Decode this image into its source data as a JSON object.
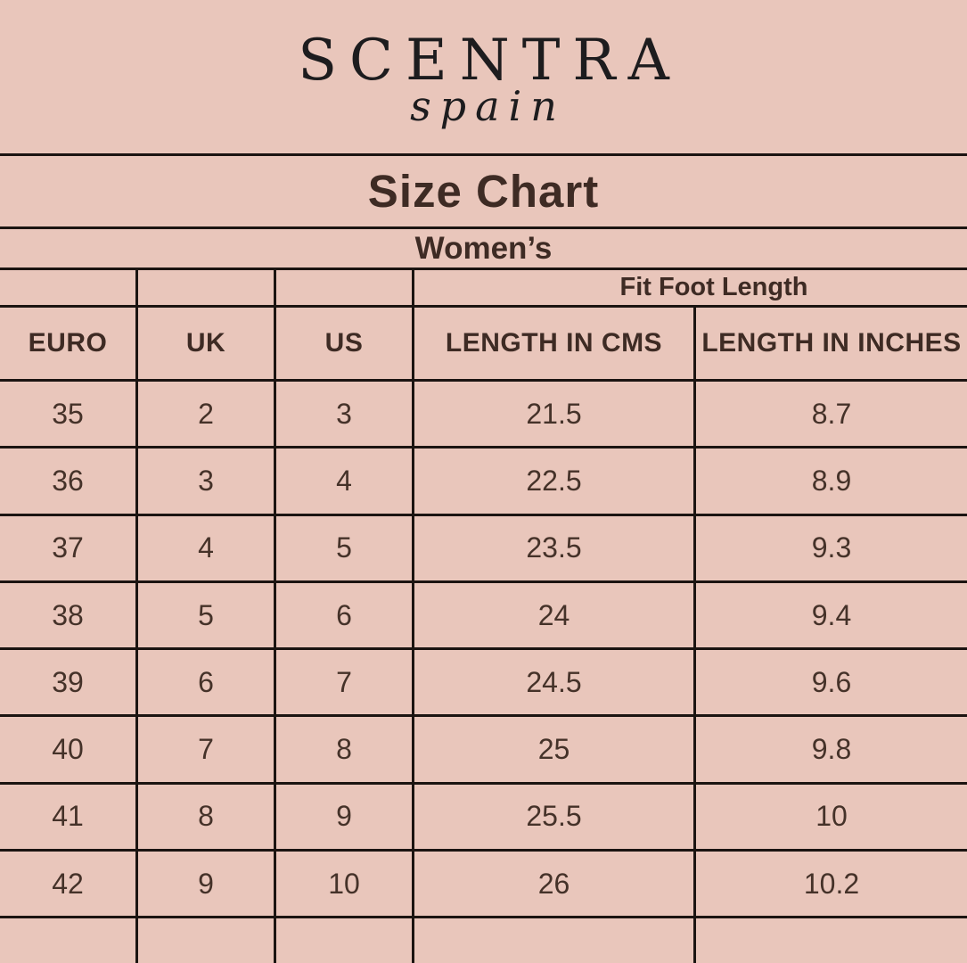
{
  "colors": {
    "background": "#e9c6bb",
    "grid_line": "#1b1411",
    "heading_text": "#3e2b24",
    "logo_text": "#1d1c1e"
  },
  "logo": {
    "brand": "SCENTRA",
    "sub": "spain"
  },
  "title": "Size Chart",
  "subtitle": "Women’s",
  "table": {
    "span_header": "Fit Foot Length",
    "columns": [
      "EURO",
      "UK",
      "US",
      "LENGTH IN CMS",
      "LENGTH IN INCHES"
    ],
    "rows": [
      [
        "35",
        "2",
        "3",
        "21.5",
        "8.7"
      ],
      [
        "36",
        "3",
        "4",
        "22.5",
        "8.9"
      ],
      [
        "37",
        "4",
        "5",
        "23.5",
        "9.3"
      ],
      [
        "38",
        "5",
        "6",
        "24",
        "9.4"
      ],
      [
        "39",
        "6",
        "7",
        "24.5",
        "9.6"
      ],
      [
        "40",
        "7",
        "8",
        "25",
        "9.8"
      ],
      [
        "41",
        "8",
        "9",
        "25.5",
        "10"
      ],
      [
        "42",
        "9",
        "10",
        "26",
        "10.2"
      ]
    ]
  },
  "chart_data": {
    "type": "table",
    "title": "Size Chart",
    "subtitle": "Women’s",
    "group_header": "Fit Foot Length",
    "columns": [
      "EURO",
      "UK",
      "US",
      "LENGTH IN CMS",
      "LENGTH IN INCHES"
    ],
    "rows": [
      [
        35,
        2,
        3,
        21.5,
        8.7
      ],
      [
        36,
        3,
        4,
        22.5,
        8.9
      ],
      [
        37,
        4,
        5,
        23.5,
        9.3
      ],
      [
        38,
        5,
        6,
        24,
        9.4
      ],
      [
        39,
        6,
        7,
        24.5,
        9.6
      ],
      [
        40,
        7,
        8,
        25,
        9.8
      ],
      [
        41,
        8,
        9,
        25.5,
        10
      ],
      [
        42,
        9,
        10,
        26,
        10.2
      ]
    ]
  }
}
